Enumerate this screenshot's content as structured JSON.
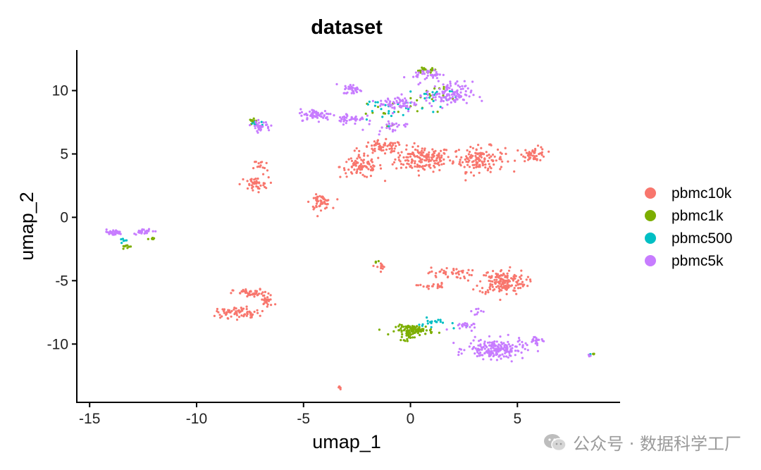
{
  "watermark": {
    "text": "公众号 · 数据科学工厂",
    "icon": "wechat-icon"
  },
  "chart_data": {
    "type": "scatter",
    "title": "dataset",
    "xlabel": "umap_1",
    "ylabel": "umap_2",
    "xlim": [
      -15.6,
      9.8
    ],
    "ylim": [
      -14.6,
      13.2
    ],
    "xticks": [
      -15,
      -10,
      -5,
      0,
      5
    ],
    "yticks": [
      -10,
      -5,
      0,
      5,
      10
    ],
    "xtick_labels": [
      "-15",
      "-10",
      "-5",
      "0",
      "5"
    ],
    "ytick_labels": [
      "-10",
      "-5",
      "0",
      "5",
      "10"
    ],
    "grid": false,
    "legend_position": "right",
    "series": [
      {
        "name": "pbmc10k",
        "color": "#F8766D",
        "clusters": [
          {
            "cx": 0.6,
            "cy": 4.6,
            "sx": 1.2,
            "sy": 0.9,
            "n": 160
          },
          {
            "cx": 3.2,
            "cy": 4.6,
            "sx": 1.1,
            "sy": 0.9,
            "n": 140
          },
          {
            "cx": -2.3,
            "cy": 4.0,
            "sx": 0.9,
            "sy": 0.8,
            "n": 90
          },
          {
            "cx": -1.3,
            "cy": 5.5,
            "sx": 0.9,
            "sy": 0.5,
            "n": 60
          },
          {
            "cx": 5.8,
            "cy": 5.0,
            "sx": 0.5,
            "sy": 0.5,
            "n": 50
          },
          {
            "cx": -4.2,
            "cy": 1.2,
            "sx": 0.45,
            "sy": 0.5,
            "n": 55
          },
          {
            "cx": -7.3,
            "cy": 2.6,
            "sx": 0.6,
            "sy": 0.5,
            "n": 40
          },
          {
            "cx": -7.0,
            "cy": 4.0,
            "sx": 0.3,
            "sy": 0.6,
            "n": 15
          },
          {
            "cx": 4.3,
            "cy": -5.1,
            "sx": 1.0,
            "sy": 0.9,
            "n": 170
          },
          {
            "cx": 1.8,
            "cy": -4.4,
            "sx": 0.9,
            "sy": 0.4,
            "n": 40
          },
          {
            "cx": 1.0,
            "cy": -5.4,
            "sx": 0.6,
            "sy": 0.2,
            "n": 20
          },
          {
            "cx": -7.4,
            "cy": -6.0,
            "sx": 0.8,
            "sy": 0.3,
            "n": 45
          },
          {
            "cx": -6.7,
            "cy": -6.6,
            "sx": 0.3,
            "sy": 0.5,
            "n": 25
          },
          {
            "cx": -8.3,
            "cy": -7.5,
            "sx": 0.7,
            "sy": 0.4,
            "n": 50
          },
          {
            "cx": -7.5,
            "cy": -7.6,
            "sx": 0.4,
            "sy": 0.3,
            "n": 20
          },
          {
            "cx": -1.4,
            "cy": -3.9,
            "sx": 0.2,
            "sy": 0.3,
            "n": 12
          },
          {
            "cx": -3.3,
            "cy": -13.4,
            "sx": 0.15,
            "sy": 0.15,
            "n": 8
          }
        ]
      },
      {
        "name": "pbmc1k",
        "color": "#7CAE00",
        "clusters": [
          {
            "cx": 0.2,
            "cy": -8.9,
            "sx": 0.8,
            "sy": 0.35,
            "n": 90
          },
          {
            "cx": -0.1,
            "cy": -9.4,
            "sx": 0.3,
            "sy": 0.3,
            "n": 15
          },
          {
            "cx": 0.7,
            "cy": 11.6,
            "sx": 0.5,
            "sy": 0.2,
            "n": 20
          },
          {
            "cx": -7.3,
            "cy": 7.6,
            "sx": 0.2,
            "sy": 0.15,
            "n": 12
          },
          {
            "cx": -13.3,
            "cy": -2.3,
            "sx": 0.2,
            "sy": 0.15,
            "n": 10
          },
          {
            "cx": -12.0,
            "cy": -1.7,
            "sx": 0.2,
            "sy": 0.1,
            "n": 8
          },
          {
            "cx": -1.0,
            "cy": 8.5,
            "sx": 1.5,
            "sy": 1.0,
            "n": 18
          },
          {
            "cx": 1.0,
            "cy": 9.8,
            "sx": 0.9,
            "sy": 0.6,
            "n": 12
          },
          {
            "cx": -1.6,
            "cy": -3.5,
            "sx": 0.1,
            "sy": 0.2,
            "n": 4
          },
          {
            "cx": 8.5,
            "cy": -10.8,
            "sx": 0.1,
            "sy": 0.05,
            "n": 3
          }
        ]
      },
      {
        "name": "pbmc500",
        "color": "#00BFC4",
        "clusters": [
          {
            "cx": 1.3,
            "cy": -8.4,
            "sx": 0.9,
            "sy": 0.4,
            "n": 20
          },
          {
            "cx": -1.0,
            "cy": 8.5,
            "sx": 1.6,
            "sy": 1.0,
            "n": 25
          },
          {
            "cx": 1.2,
            "cy": 9.8,
            "sx": 1.0,
            "sy": 0.8,
            "n": 15
          },
          {
            "cx": -7.2,
            "cy": 7.4,
            "sx": 0.3,
            "sy": 0.2,
            "n": 6
          },
          {
            "cx": -13.4,
            "cy": -2.0,
            "sx": 0.2,
            "sy": 0.2,
            "n": 6
          },
          {
            "cx": 8.4,
            "cy": -10.8,
            "sx": 0.1,
            "sy": 0.05,
            "n": 3
          }
        ]
      },
      {
        "name": "pbmc5k",
        "color": "#C77CFF",
        "clusters": [
          {
            "cx": 4.0,
            "cy": -10.4,
            "sx": 1.2,
            "sy": 0.7,
            "n": 190
          },
          {
            "cx": 5.9,
            "cy": -9.7,
            "sx": 0.4,
            "sy": 0.3,
            "n": 20
          },
          {
            "cx": 2.4,
            "cy": -8.6,
            "sx": 0.5,
            "sy": 0.3,
            "n": 20
          },
          {
            "cx": 3.1,
            "cy": -7.4,
            "sx": 0.2,
            "sy": 0.3,
            "n": 8
          },
          {
            "cx": 1.8,
            "cy": 9.7,
            "sx": 1.0,
            "sy": 0.9,
            "n": 120
          },
          {
            "cx": 0.8,
            "cy": 11.3,
            "sx": 0.6,
            "sy": 0.3,
            "n": 35
          },
          {
            "cx": -0.6,
            "cy": 9.0,
            "sx": 0.8,
            "sy": 0.6,
            "n": 60
          },
          {
            "cx": -4.4,
            "cy": 8.1,
            "sx": 0.7,
            "sy": 0.4,
            "n": 70
          },
          {
            "cx": -2.7,
            "cy": 10.1,
            "sx": 0.4,
            "sy": 0.35,
            "n": 35
          },
          {
            "cx": -2.8,
            "cy": 7.8,
            "sx": 0.6,
            "sy": 0.4,
            "n": 40
          },
          {
            "cx": -7.0,
            "cy": 7.2,
            "sx": 0.4,
            "sy": 0.35,
            "n": 35
          },
          {
            "cx": -13.9,
            "cy": -1.2,
            "sx": 0.4,
            "sy": 0.2,
            "n": 35
          },
          {
            "cx": -12.5,
            "cy": -1.1,
            "sx": 0.4,
            "sy": 0.2,
            "n": 25
          },
          {
            "cx": -1.0,
            "cy": 7.2,
            "sx": 0.8,
            "sy": 0.4,
            "n": 25
          },
          {
            "cx": 8.3,
            "cy": -10.9,
            "sx": 0.1,
            "sy": 0.05,
            "n": 3
          }
        ]
      }
    ]
  }
}
